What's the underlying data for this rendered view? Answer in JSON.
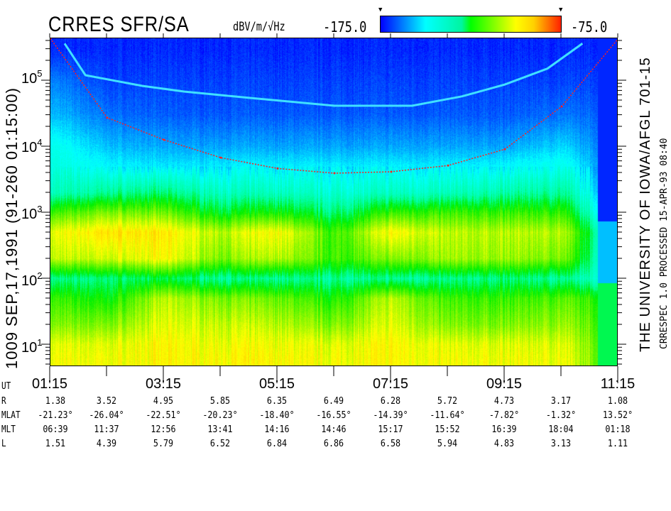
{
  "header": {
    "title": "CRRES SFR/SA",
    "units": "dBV/m/√Hz",
    "color_min": "-175.0",
    "color_max": "-75.0"
  },
  "left_caption": "1009   SEP,17,1991   (91-260 01:15:00)",
  "right_caption": "THE UNIVERSITY OF IOWA/AFGL 701-15",
  "right_caption2": "CRRESPEC 1.0   PROCESSED 15-APR-93   08:40",
  "table": {
    "ut_label": "UT",
    "ut_ticks": [
      "01:15",
      "03:15",
      "05:15",
      "07:15",
      "09:15",
      "11:15"
    ],
    "rows": [
      {
        "label": "R",
        "values": [
          "1.38",
          "3.52",
          "4.95",
          "5.85",
          "6.35",
          "6.49",
          "6.28",
          "5.72",
          "4.73",
          "3.17",
          "1.08"
        ]
      },
      {
        "label": "MLAT",
        "values": [
          "-21.23°",
          "-26.04°",
          "-22.51°",
          "-20.23°",
          "-18.40°",
          "-16.55°",
          "-14.39°",
          "-11.64°",
          "-7.82°",
          "-1.32°",
          "13.52°"
        ]
      },
      {
        "label": "MLT",
        "values": [
          "06:39",
          "11:37",
          "12:56",
          "13:41",
          "14:16",
          "14:46",
          "15:17",
          "15:52",
          "16:39",
          "18:04",
          "01:18"
        ]
      },
      {
        "label": "L",
        "values": [
          "1.51",
          "4.39",
          "5.79",
          "6.52",
          "6.84",
          "6.86",
          "6.58",
          "5.94",
          "4.83",
          "3.13",
          "1.11"
        ]
      }
    ]
  },
  "chart_data": {
    "type": "heatmap",
    "title": "CRRES SFR/SA",
    "colorbar": {
      "label": "dBV/m/√Hz",
      "min": -175.0,
      "max": -75.0,
      "colors": [
        "#0000ff",
        "#00ffff",
        "#00ff00",
        "#ffff00",
        "#ff2000"
      ]
    },
    "x": {
      "label": "UT",
      "range": [
        "01:15",
        "11:15"
      ],
      "tick_labels": [
        "01:15",
        "03:15",
        "05:15",
        "07:15",
        "09:15",
        "11:15"
      ],
      "minor_ticks_hours": 1
    },
    "y": {
      "scale": "log",
      "unit": "Hz",
      "range": [
        5,
        430000
      ],
      "tick_labels": [
        "10^1",
        "10^2",
        "10^3",
        "10^4",
        "10^5"
      ]
    },
    "grid_times": [
      "01:15",
      "02:15",
      "03:15",
      "04:15",
      "05:15",
      "06:15",
      "07:15",
      "08:15",
      "09:15",
      "10:15",
      "11:15"
    ],
    "grid_freqs_hz": [
      300000,
      100000,
      30000,
      10000,
      5000,
      2000,
      1000,
      500,
      200,
      100,
      50,
      20,
      10,
      6
    ],
    "grid_db": [
      [
        -172,
        -172,
        -172,
        -172,
        -172,
        -172,
        -172,
        -172,
        -172,
        -172,
        -172
      ],
      [
        -165,
        -170,
        -170,
        -170,
        -170,
        -170,
        -170,
        -170,
        -170,
        -170,
        -170
      ],
      [
        -160,
        -166,
        -168,
        -168,
        -168,
        -168,
        -168,
        -168,
        -168,
        -166,
        -168
      ],
      [
        -152,
        -160,
        -162,
        -162,
        -162,
        -162,
        -162,
        -162,
        -162,
        -158,
        -168
      ],
      [
        -150,
        -155,
        -157,
        -156,
        -156,
        -156,
        -156,
        -156,
        -155,
        -152,
        -168
      ],
      [
        -145,
        -140,
        -138,
        -145,
        -145,
        -148,
        -146,
        -145,
        -142,
        -140,
        -168
      ],
      [
        -125,
        -118,
        -120,
        -132,
        -128,
        -138,
        -125,
        -125,
        -125,
        -125,
        -168
      ],
      [
        -108,
        -100,
        -102,
        -112,
        -104,
        -125,
        -104,
        -112,
        -112,
        -112,
        -158
      ],
      [
        -112,
        -110,
        -105,
        -118,
        -112,
        -125,
        -118,
        -115,
        -115,
        -118,
        -158
      ],
      [
        -140,
        -138,
        -135,
        -140,
        -140,
        -140,
        -140,
        -140,
        -138,
        -140,
        -150
      ],
      [
        -125,
        -130,
        -112,
        -118,
        -120,
        -128,
        -112,
        -125,
        -125,
        -122,
        -130
      ],
      [
        -118,
        -118,
        -108,
        -110,
        -112,
        -118,
        -108,
        -118,
        -118,
        -115,
        -128
      ],
      [
        -108,
        -108,
        -104,
        -106,
        -106,
        -108,
        -104,
        -108,
        -108,
        -108,
        -128
      ],
      [
        -106,
        -106,
        -104,
        -104,
        -104,
        -106,
        -104,
        -106,
        -106,
        -106,
        -128
      ]
    ],
    "overlay_curve_red": [
      {
        "t": "01:15",
        "f": 430000
      },
      {
        "t": "02:15",
        "f": 27000
      },
      {
        "t": "03:15",
        "f": 12500
      },
      {
        "t": "04:15",
        "f": 6700
      },
      {
        "t": "05:15",
        "f": 4600
      },
      {
        "t": "06:15",
        "f": 3900
      },
      {
        "t": "07:15",
        "f": 4100
      },
      {
        "t": "08:15",
        "f": 5100
      },
      {
        "t": "09:15",
        "f": 9000
      },
      {
        "t": "10:15",
        "f": 40000
      },
      {
        "t": "11:15",
        "f": 430000
      }
    ],
    "emission_band_cyan": [
      {
        "t": "01:30",
        "f": 360000
      },
      {
        "t": "01:52",
        "f": 119000
      },
      {
        "t": "02:52",
        "f": 82000
      },
      {
        "t": "03:37",
        "f": 67000
      },
      {
        "t": "04:45",
        "f": 54000
      },
      {
        "t": "06:15",
        "f": 41000
      },
      {
        "t": "07:37",
        "f": 41000
      },
      {
        "t": "08:30",
        "f": 57000
      },
      {
        "t": "09:15",
        "f": 86000
      },
      {
        "t": "10:00",
        "f": 150000
      },
      {
        "t": "10:37",
        "f": 360000
      }
    ]
  }
}
